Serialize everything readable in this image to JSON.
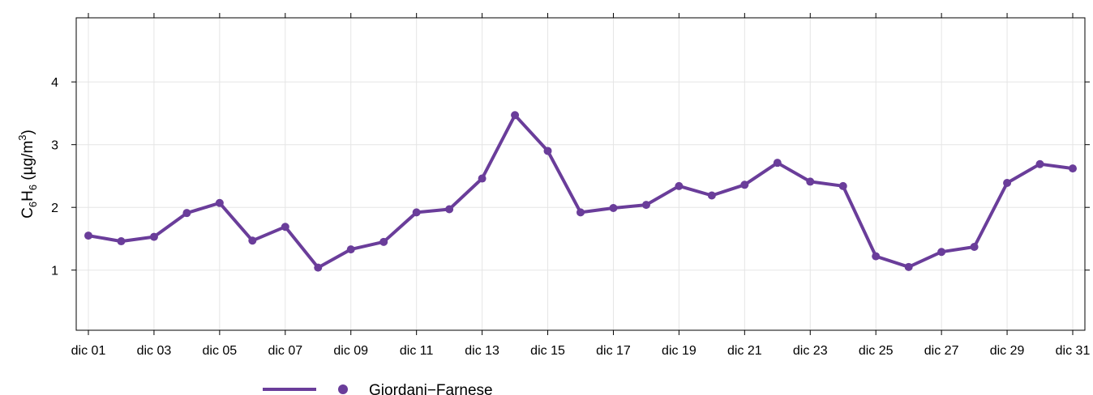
{
  "chart_data": {
    "type": "line",
    "x": [
      "dic 01",
      "dic 02",
      "dic 03",
      "dic 04",
      "dic 05",
      "dic 06",
      "dic 07",
      "dic 08",
      "dic 09",
      "dic 10",
      "dic 11",
      "dic 12",
      "dic 13",
      "dic 14",
      "dic 15",
      "dic 16",
      "dic 17",
      "dic 18",
      "dic 19",
      "dic 20",
      "dic 21",
      "dic 22",
      "dic 23",
      "dic 24",
      "dic 25",
      "dic 26",
      "dic 27",
      "dic 28",
      "dic 29",
      "dic 30",
      "dic 31"
    ],
    "x_tick_labels": [
      "dic 01",
      "dic 03",
      "dic 05",
      "dic 07",
      "dic 09",
      "dic 11",
      "dic 13",
      "dic 15",
      "dic 17",
      "dic 19",
      "dic 21",
      "dic 23",
      "dic 25",
      "dic 27",
      "dic 29",
      "dic 31"
    ],
    "y_ticks": [
      1,
      2,
      3,
      4
    ],
    "ylim": [
      0,
      5
    ],
    "ylabel": {
      "main": "C",
      "sub1": "6",
      "mid": "H",
      "sub2": "6",
      "unit_open": " (µg/m",
      "sup": "3",
      "unit_close": ")"
    },
    "grid": true,
    "legend_position": "bottom",
    "series": [
      {
        "name": "Giordani−Farnese",
        "color": "#6a3d9a",
        "values": [
          1.55,
          1.46,
          1.53,
          1.91,
          2.07,
          1.47,
          1.69,
          1.04,
          1.33,
          1.45,
          1.92,
          1.97,
          2.46,
          3.47,
          2.9,
          1.92,
          1.99,
          2.04,
          2.34,
          2.19,
          2.36,
          2.71,
          2.41,
          2.34,
          1.22,
          1.05,
          1.29,
          1.37,
          2.39,
          2.69,
          2.62
        ]
      }
    ]
  }
}
